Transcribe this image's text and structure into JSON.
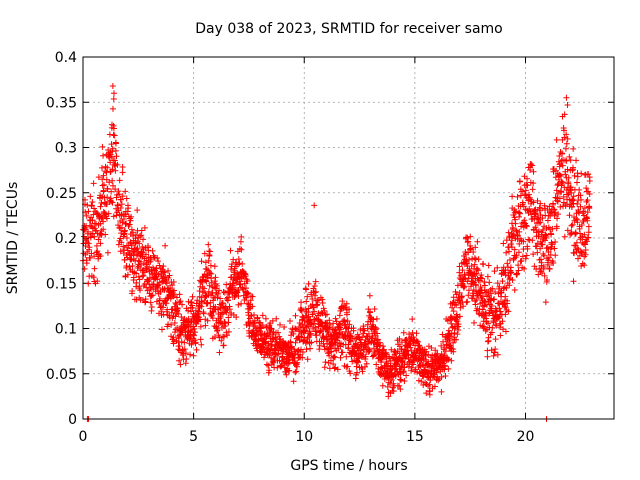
{
  "chart_data": {
    "type": "scatter",
    "title": "Day 038 of 2023, SRMTID for receiver samo",
    "xlabel": "GPS time / hours",
    "ylabel": "SRMTID / TECUs",
    "xlim": [
      0,
      24
    ],
    "ylim": [
      0,
      0.4
    ],
    "xticks": [
      0,
      5,
      10,
      15,
      20
    ],
    "xtick_labels": [
      "0",
      "5",
      "10",
      "15",
      "20"
    ],
    "yticks": [
      0,
      0.05,
      0.1,
      0.15,
      0.2,
      0.25,
      0.3,
      0.35,
      0.4
    ],
    "ytick_labels": [
      "0",
      "0.05",
      "0.1",
      "0.15",
      "0.2",
      "0.25",
      "0.3",
      "0.35",
      "0.4"
    ],
    "grid": true,
    "marker": "plus",
    "color": "#ff0000",
    "series": [
      {
        "name": "SRMTID",
        "envelope_x": [
          0.0,
          0.3,
          0.6,
          0.9,
          1.2,
          1.4,
          1.6,
          1.8,
          2.0,
          2.3,
          2.6,
          3.0,
          3.4,
          3.8,
          4.2,
          4.5,
          4.8,
          5.1,
          5.4,
          5.7,
          6.0,
          6.3,
          6.6,
          6.9,
          7.2,
          7.5,
          7.8,
          8.1,
          8.4,
          8.8,
          9.2,
          9.6,
          10.0,
          10.3,
          10.6,
          10.9,
          11.2,
          11.5,
          11.8,
          12.1,
          12.4,
          12.7,
          13.0,
          13.3,
          13.6,
          13.9,
          14.2,
          14.5,
          14.8,
          15.1,
          15.4,
          15.7,
          16.0,
          16.3,
          16.6,
          16.9,
          17.2,
          17.5,
          17.8,
          18.1,
          18.4,
          18.7,
          19.0,
          19.3,
          19.6,
          19.9,
          20.2,
          20.5,
          20.8,
          21.1,
          21.4,
          21.7,
          22.0,
          22.3,
          22.6,
          22.9
        ],
        "envelope_y": [
          0.19,
          0.21,
          0.2,
          0.23,
          0.27,
          0.3,
          0.24,
          0.22,
          0.2,
          0.18,
          0.17,
          0.16,
          0.15,
          0.14,
          0.11,
          0.09,
          0.1,
          0.11,
          0.13,
          0.15,
          0.12,
          0.11,
          0.13,
          0.16,
          0.17,
          0.12,
          0.1,
          0.09,
          0.08,
          0.08,
          0.07,
          0.08,
          0.1,
          0.12,
          0.11,
          0.09,
          0.08,
          0.09,
          0.1,
          0.08,
          0.07,
          0.08,
          0.1,
          0.08,
          0.06,
          0.05,
          0.06,
          0.07,
          0.08,
          0.07,
          0.06,
          0.05,
          0.06,
          0.07,
          0.09,
          0.12,
          0.16,
          0.17,
          0.15,
          0.13,
          0.12,
          0.11,
          0.14,
          0.18,
          0.2,
          0.22,
          0.24,
          0.2,
          0.19,
          0.2,
          0.24,
          0.29,
          0.25,
          0.22,
          0.2,
          0.24
        ],
        "spread": [
          0.045,
          0.05,
          0.045,
          0.05,
          0.06,
          0.065,
          0.05,
          0.05,
          0.045,
          0.04,
          0.04,
          0.04,
          0.04,
          0.04,
          0.035,
          0.03,
          0.03,
          0.035,
          0.035,
          0.04,
          0.035,
          0.035,
          0.035,
          0.035,
          0.035,
          0.03,
          0.03,
          0.025,
          0.025,
          0.025,
          0.025,
          0.03,
          0.035,
          0.04,
          0.035,
          0.03,
          0.03,
          0.03,
          0.03,
          0.03,
          0.025,
          0.025,
          0.03,
          0.025,
          0.02,
          0.02,
          0.025,
          0.025,
          0.025,
          0.025,
          0.02,
          0.02,
          0.02,
          0.025,
          0.03,
          0.035,
          0.04,
          0.04,
          0.04,
          0.04,
          0.04,
          0.04,
          0.045,
          0.05,
          0.05,
          0.05,
          0.055,
          0.05,
          0.05,
          0.05,
          0.055,
          0.06,
          0.055,
          0.05,
          0.05,
          0.05
        ],
        "sample_step_hours": 0.02,
        "extreme_points": [
          [
            1.35,
            0.368
          ],
          [
            1.4,
            0.36
          ],
          [
            21.85,
            0.355
          ],
          [
            21.9,
            0.347
          ],
          [
            10.45,
            0.236
          ],
          [
            0.2,
            0.0
          ],
          [
            0.25,
            0.0
          ],
          [
            20.95,
            0.0
          ],
          [
            13.8,
            0.025
          ],
          [
            16.2,
            0.03
          ]
        ]
      }
    ]
  }
}
